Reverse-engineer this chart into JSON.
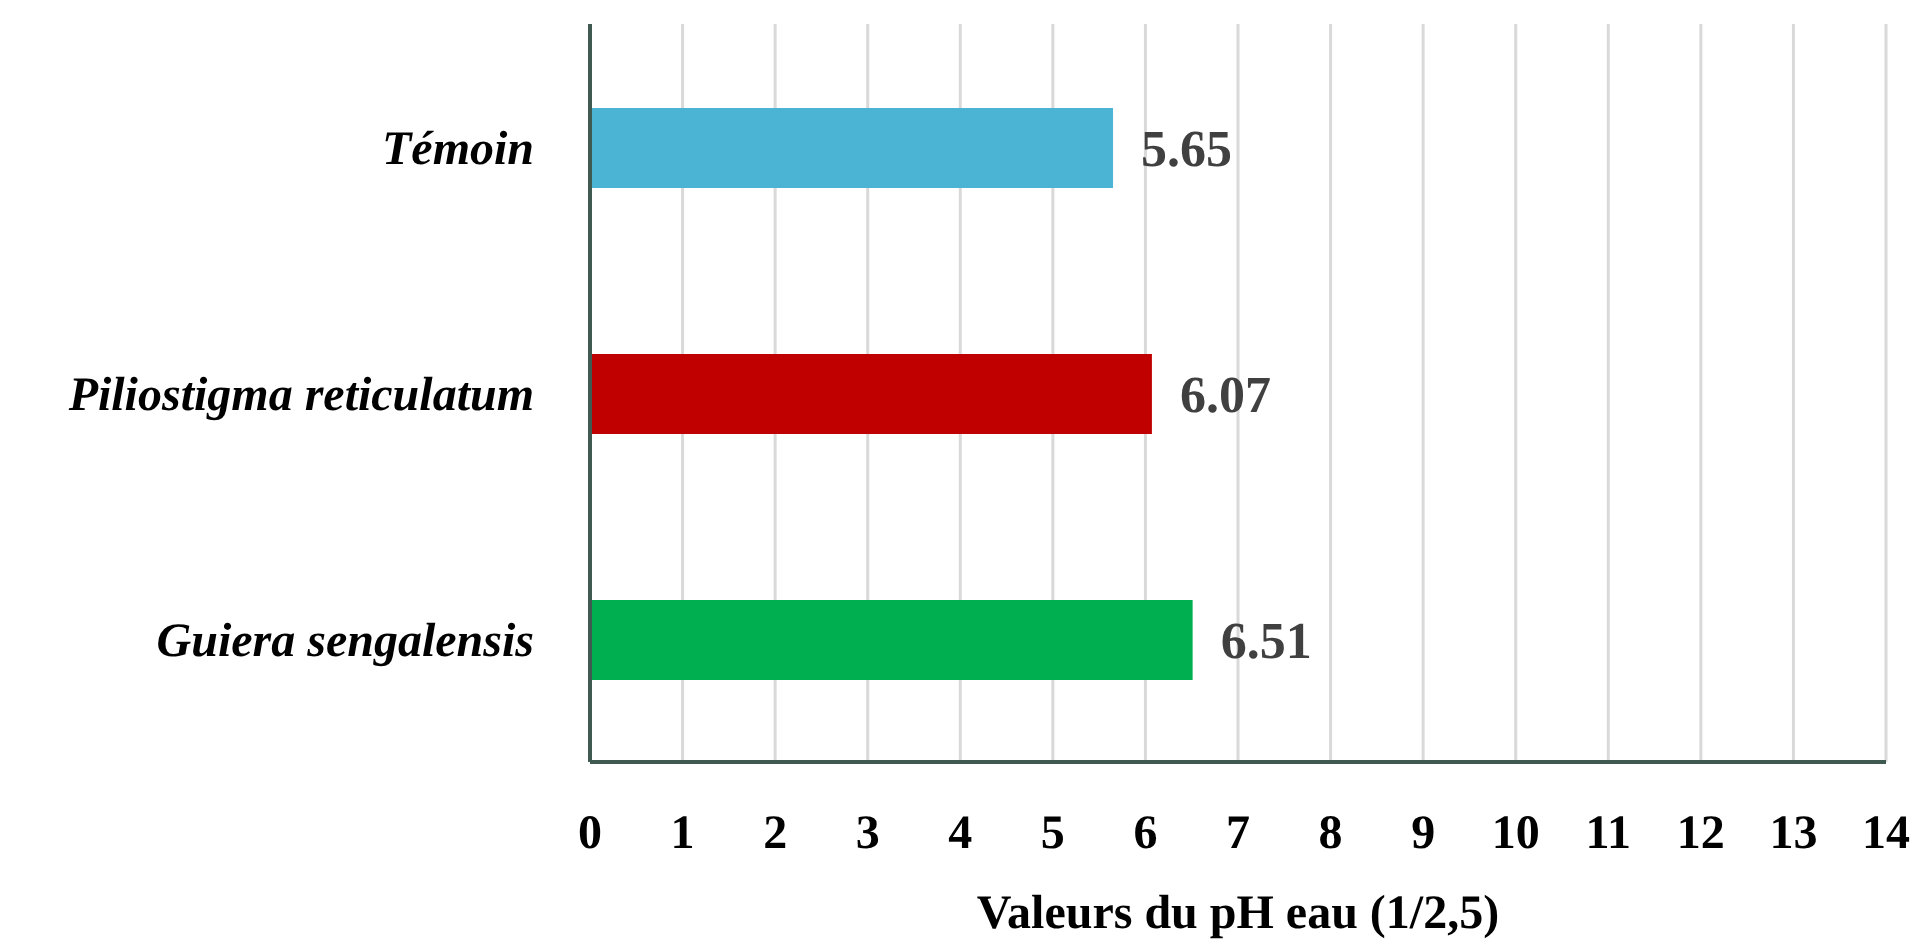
{
  "chart_data": {
    "type": "bar",
    "orientation": "horizontal",
    "xlabel": "Valeurs du pH eau (1/2,5)",
    "categories": [
      "Témoin",
      "Piliostigma reticulatum",
      "Guiera sengalensis"
    ],
    "values": [
      5.65,
      6.07,
      6.51
    ],
    "colors": [
      "#4bb3d3",
      "#c00000",
      "#00b050"
    ],
    "xlim": [
      0,
      14
    ],
    "xticks": [
      0,
      1,
      2,
      3,
      4,
      5,
      6,
      7,
      8,
      9,
      10,
      11,
      12,
      13,
      14
    ],
    "grid": "x",
    "data_labels": true,
    "legend": false
  }
}
